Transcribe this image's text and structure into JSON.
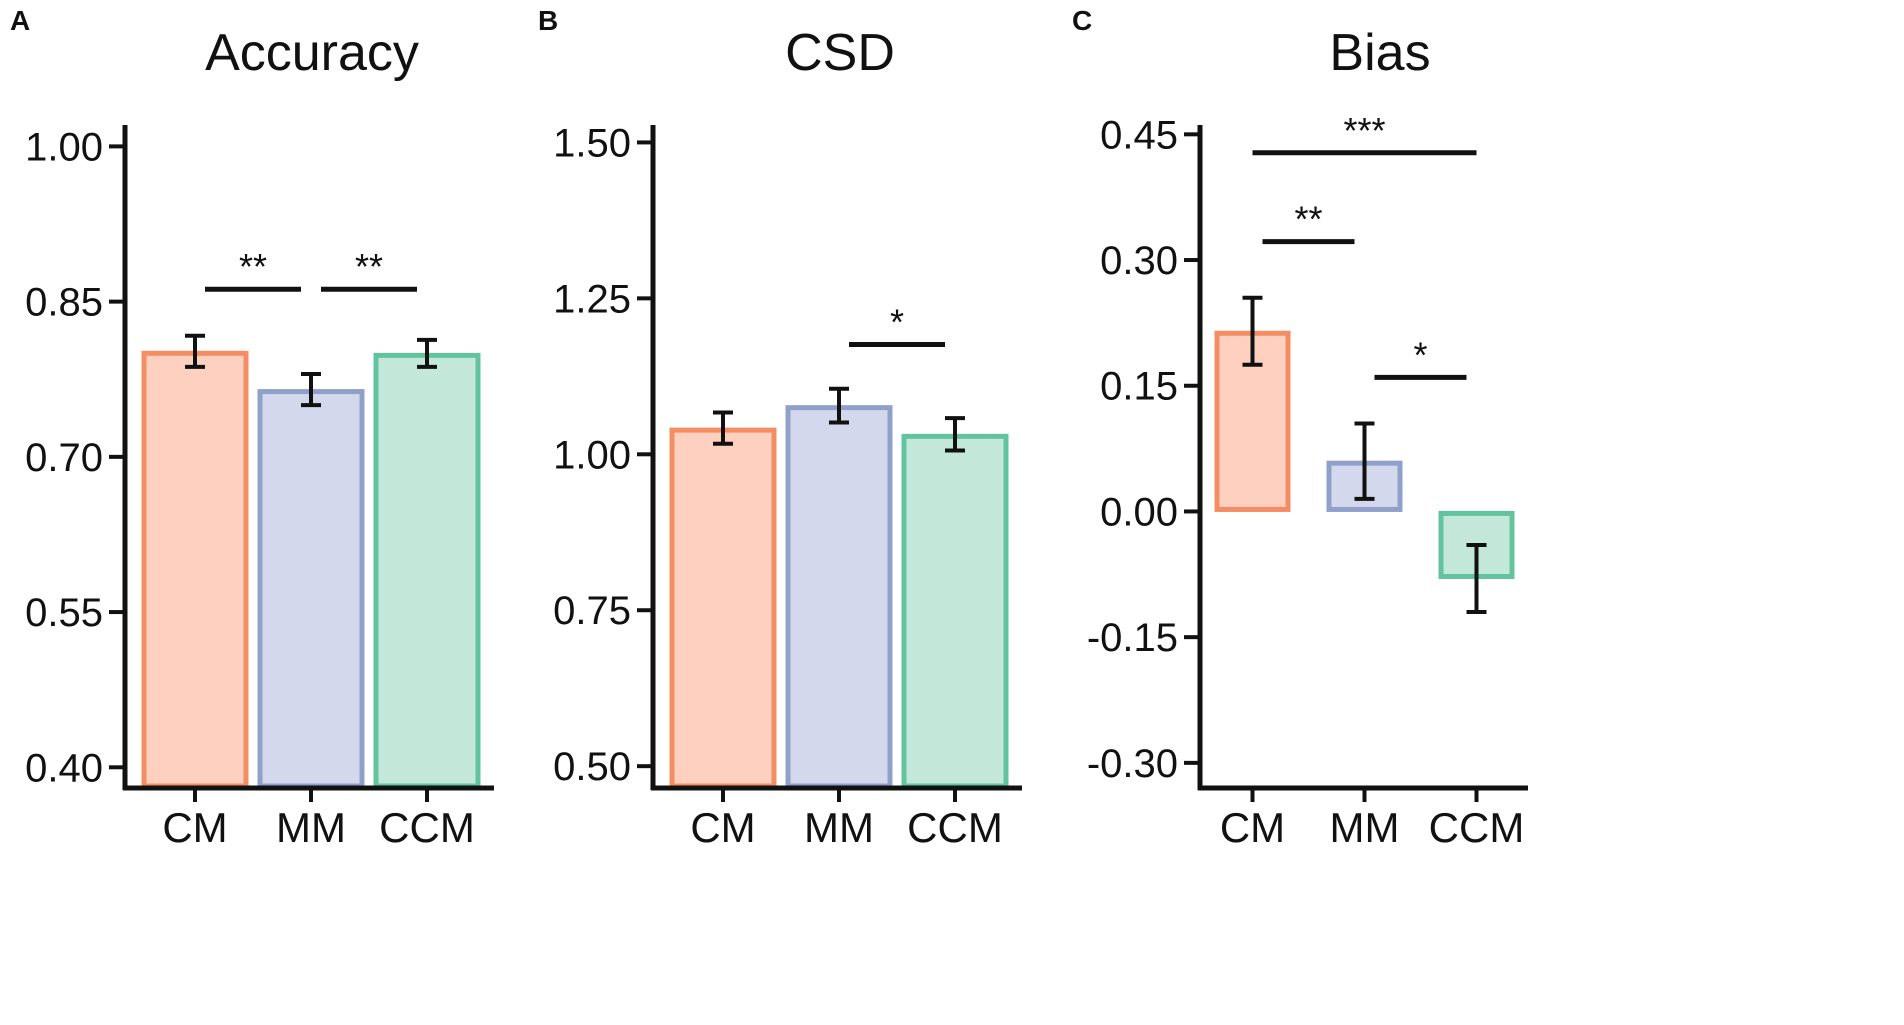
{
  "colors": {
    "CM_fill": "#fdd0bf",
    "CM_stroke": "#f48d64",
    "MM_fill": "#d4d8ec",
    "MM_stroke": "#8fa0cb",
    "CCM_fill": "#c3e8da",
    "CCM_stroke": "#62c49e",
    "axis": "#111111"
  },
  "chart_data": [
    {
      "type": "bar",
      "panel": "A",
      "title": "Accuracy",
      "categories": [
        "CM",
        "MM",
        "CCM"
      ],
      "values": [
        0.802,
        0.765,
        0.8
      ],
      "errors": [
        0.015,
        0.015,
        0.013
      ],
      "ylim": [
        0.38,
        1.04
      ],
      "yticks": [
        0.4,
        0.55,
        0.7,
        0.85,
        1.0
      ],
      "ytick_labels": [
        "0.40",
        "0.55",
        "0.70",
        "0.85",
        "1.00"
      ],
      "significance": [
        {
          "from": 0,
          "to": 1,
          "label": "**",
          "y": 0.862
        },
        {
          "from": 1,
          "to": 2,
          "label": "**",
          "y": 0.862
        }
      ]
    },
    {
      "type": "bar",
      "panel": "B",
      "title": "CSD",
      "categories": [
        "CM",
        "MM",
        "CCM"
      ],
      "values": [
        1.042,
        1.078,
        1.032
      ],
      "errors": [
        0.025,
        0.027,
        0.026
      ],
      "ylim": [
        0.465,
        1.56
      ],
      "yticks": [
        0.5,
        0.75,
        1.0,
        1.25,
        1.5
      ],
      "ytick_labels": [
        "0.50",
        "0.75",
        "1.00",
        "1.25",
        "1.50"
      ],
      "significance": [
        {
          "from": 1,
          "to": 2,
          "label": "*",
          "y": 1.176
        }
      ]
    },
    {
      "type": "bar",
      "panel": "C",
      "title": "Bias",
      "categories": [
        "CM",
        "MM",
        "CCM"
      ],
      "values": [
        0.215,
        0.06,
        -0.08
      ],
      "errors": [
        0.04,
        0.045,
        0.04
      ],
      "ylim": [
        -0.33,
        0.485
      ],
      "yticks": [
        -0.3,
        -0.15,
        0.0,
        0.15,
        0.3,
        0.45
      ],
      "ytick_labels": [
        "-0.30",
        "-0.15",
        "0.00",
        "0.15",
        "0.30",
        "0.45"
      ],
      "significance": [
        {
          "from": 0,
          "to": 2,
          "label": "***",
          "y": 0.428
        },
        {
          "from": 0,
          "to": 1,
          "label": "**",
          "y": 0.322
        },
        {
          "from": 1,
          "to": 2,
          "label": "*",
          "y": 0.16
        }
      ]
    }
  ]
}
